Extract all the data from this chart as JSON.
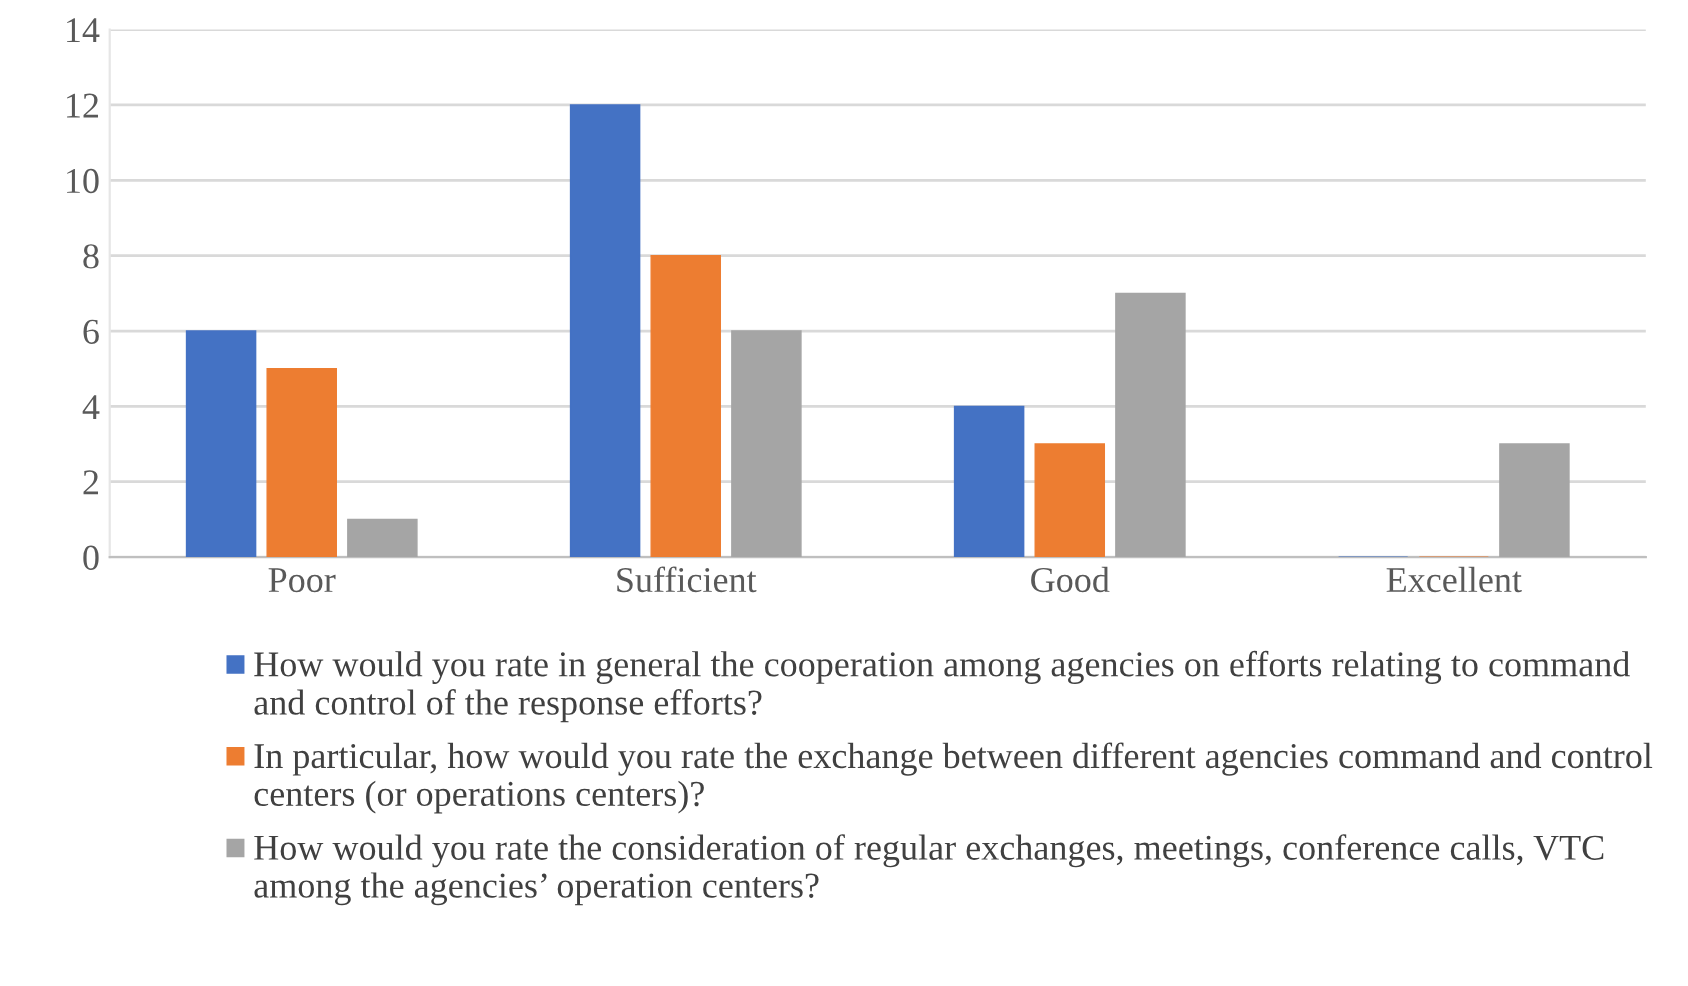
{
  "chart_data": {
    "type": "bar",
    "categories": [
      "Poor",
      "Sufficient",
      "Good",
      "Excellent"
    ],
    "series": [
      {
        "name": "How would you rate in general the cooperation among agencies on efforts relating to command and control of the response efforts?",
        "color": "#4472c4",
        "values": [
          6,
          12,
          4,
          0
        ]
      },
      {
        "name": "In particular, how would you rate the exchange between different agencies command and control centers (or operations centers)?",
        "color": "#ed7d31",
        "values": [
          5,
          8,
          3,
          0
        ]
      },
      {
        "name": "How would you rate the consideration of regular exchanges, meetings, conference calls, VTC among the agencies’ operation centers?",
        "color": "#a5a5a5",
        "values": [
          1,
          6,
          7,
          3
        ]
      }
    ],
    "ylim": [
      0,
      14
    ],
    "yticks": [
      0,
      2,
      4,
      6,
      8,
      10,
      12,
      14
    ],
    "grid": "y",
    "legend": "bottom"
  }
}
